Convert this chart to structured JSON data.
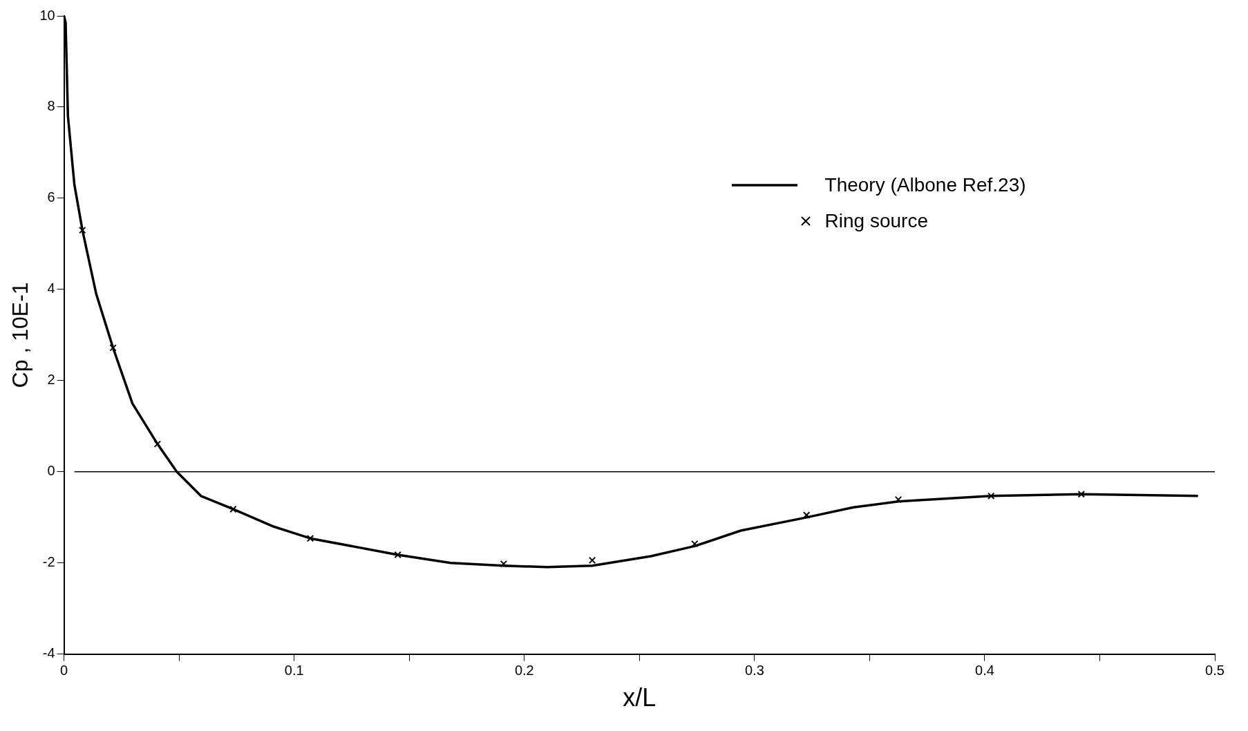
{
  "chart_data": {
    "type": "line",
    "xlabel": "x/L",
    "ylabel": "Cp , 10E-1",
    "xlim": [
      0,
      0.5
    ],
    "ylim": [
      -4,
      10
    ],
    "xticks": [
      0,
      {
        "value": 0.05,
        "label": null
      },
      0.1,
      {
        "value": 0.15,
        "label": null
      },
      0.2,
      {
        "value": 0.25,
        "label": null
      },
      0.3,
      {
        "value": 0.35,
        "label": null
      },
      0.4,
      {
        "value": 0.45,
        "label": null
      },
      0.5
    ],
    "yticks": [
      -4,
      -2,
      0,
      2,
      4,
      6,
      8,
      10
    ],
    "grid": false,
    "legend": "top right",
    "ref_lines": [
      {
        "axis": "y",
        "value": 0,
        "color": "#000000"
      }
    ],
    "series": [
      {
        "name": "Theory (Albone Ref.23)",
        "marker": "none",
        "line_style": "solid",
        "color": "#000000",
        "x": [
          0,
          0.0007,
          0.0017,
          0.0045,
          0.008,
          0.014,
          0.0213,
          0.0297,
          0.0406,
          0.049,
          0.0595,
          0.0735,
          0.091,
          0.107,
          0.145,
          0.168,
          0.191,
          0.21,
          0.2295,
          0.255,
          0.274,
          0.294,
          0.3226,
          0.343,
          0.3625,
          0.4028,
          0.442,
          0.4927
        ],
        "values": [
          10,
          9.85,
          7.8,
          6.3,
          5.3,
          3.9,
          2.72,
          1.5,
          0.61,
          0,
          -0.53,
          -0.82,
          -1.2,
          -1.46,
          -1.82,
          -2.0,
          -2.06,
          -2.09,
          -2.06,
          -1.85,
          -1.63,
          -1.29,
          -1.0,
          -0.78,
          -0.65,
          -0.53,
          -0.49,
          -0.53
        ]
      },
      {
        "name": "Ring source",
        "type": "scatter",
        "marker": "cross",
        "color": "#000000",
        "x": [
          0.008,
          0.0213,
          0.0406,
          0.0735,
          0.107,
          0.145,
          0.191,
          0.2295,
          0.274,
          0.3226,
          0.3625,
          0.4028,
          0.442
        ],
        "values": [
          5.3,
          2.72,
          0.61,
          -0.82,
          -1.46,
          -1.82,
          -2.02,
          -1.94,
          -1.58,
          -0.95,
          -0.61,
          -0.53,
          -0.49
        ]
      }
    ]
  }
}
